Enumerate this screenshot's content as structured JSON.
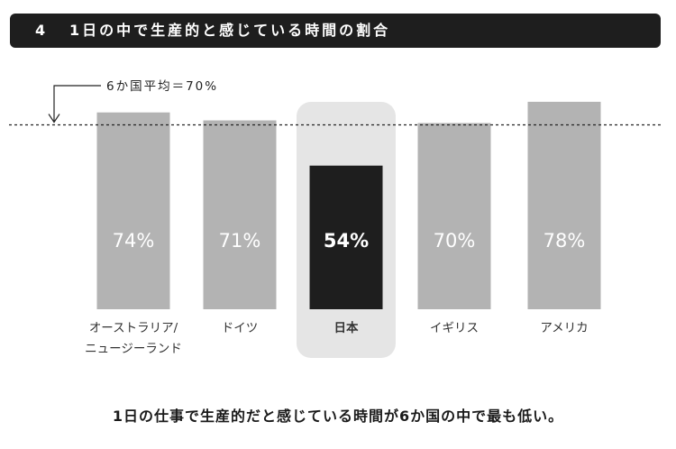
{
  "header": {
    "number": "4",
    "title": "1日の中で生産的と感じている時間の割合"
  },
  "chart_data": {
    "type": "bar",
    "categories": [
      "オーストラリア/ニュージーランド",
      "ドイツ",
      "日本",
      "イギリス",
      "アメリカ"
    ],
    "category_lines": [
      [
        "オーストラリア/",
        "ニュージーランド"
      ],
      [
        "ドイツ"
      ],
      [
        "日本"
      ],
      [
        "イギリス"
      ],
      [
        "アメリカ"
      ]
    ],
    "values": [
      74,
      71,
      54,
      70,
      78
    ],
    "value_labels": [
      "74%",
      "71%",
      "54%",
      "70%",
      "78%"
    ],
    "highlight_index": 2,
    "ylim": [
      0,
      100
    ],
    "reference_line": {
      "value": 70,
      "label": "6か国平均＝70%"
    },
    "colors": {
      "bar": "#b3b3b3",
      "highlight_bar": "#1e1e1e",
      "highlight_panel": "#e5e5e5",
      "bar_text": "#ffffff",
      "axis_text": "#333333"
    },
    "grid": false
  },
  "footer": {
    "caption": "1日の仕事で生産的だと感じている時間が6か国の中で最も低い。"
  }
}
